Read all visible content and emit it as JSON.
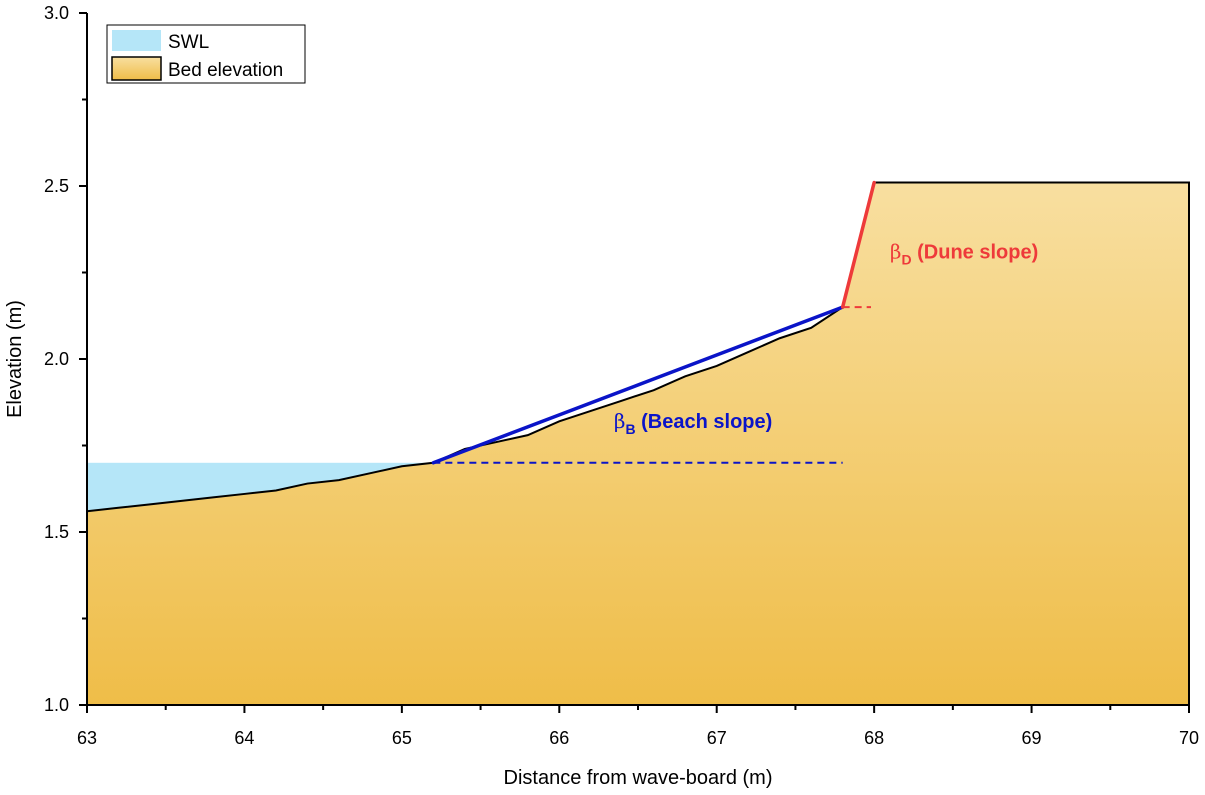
{
  "chart_data": {
    "type": "area",
    "xlabel": "Distance from wave-board (m)",
    "ylabel": "Elevation (m)",
    "xlim": [
      63,
      70
    ],
    "ylim": [
      1.0,
      3.0
    ],
    "x_ticks": [
      63,
      64,
      65,
      66,
      67,
      68,
      69,
      70
    ],
    "y_ticks": [
      1.0,
      1.5,
      2.0,
      2.5,
      3.0
    ],
    "x_tick_labels": [
      "63",
      "64",
      "65",
      "66",
      "67",
      "68",
      "69",
      "70"
    ],
    "y_tick_labels": [
      "1.0",
      "1.5",
      "2.0",
      "2.5",
      "3.0"
    ],
    "grid": false,
    "legend_position": "top-left",
    "legend": [
      {
        "label": "SWL",
        "color": "#b5e6f8"
      },
      {
        "label": "Bed elevation",
        "color": "#efc55a"
      }
    ],
    "swl": {
      "x_start": 63.0,
      "x_end": 65.2,
      "y": 1.7,
      "color": "#b5e6f8"
    },
    "bed_profile": {
      "x": [
        63.0,
        63.2,
        63.4,
        63.6,
        63.8,
        64.0,
        64.2,
        64.4,
        64.6,
        64.8,
        65.0,
        65.2,
        65.4,
        65.6,
        65.8,
        66.0,
        66.2,
        66.4,
        66.6,
        66.8,
        67.0,
        67.2,
        67.4,
        67.6,
        67.8,
        68.0,
        68.2,
        68.4,
        68.6,
        68.8,
        69.0,
        69.5,
        70.0
      ],
      "y": [
        1.56,
        1.57,
        1.58,
        1.59,
        1.6,
        1.61,
        1.62,
        1.64,
        1.65,
        1.67,
        1.69,
        1.7,
        1.74,
        1.76,
        1.78,
        1.82,
        1.85,
        1.88,
        1.91,
        1.95,
        1.98,
        2.02,
        2.06,
        2.09,
        2.15,
        2.51,
        2.51,
        2.51,
        2.51,
        2.51,
        2.51,
        2.51,
        2.51
      ],
      "fill_top": "#f8dfa0",
      "fill_bottom": "#efbd48",
      "line_color": "#000000"
    },
    "beach_slope": {
      "x": [
        65.2,
        67.8
      ],
      "y": [
        1.7,
        2.15
      ],
      "reference_y": 1.7,
      "reference_x_end": 67.8,
      "color": "#0a14c8",
      "label_symbol": "β",
      "label_sub": "B",
      "label_text": "(Beach slope)",
      "label_x": 66.85,
      "label_y": 1.8
    },
    "dune_slope": {
      "x": [
        67.8,
        68.0
      ],
      "y": [
        2.15,
        2.51
      ],
      "reference_y": 2.15,
      "reference_x_end": 67.98,
      "color": "#ee3a3a",
      "label_symbol": "β",
      "label_sub": "D",
      "label_text": "(Dune slope)",
      "label_x": 68.1,
      "label_y": 2.29
    }
  }
}
